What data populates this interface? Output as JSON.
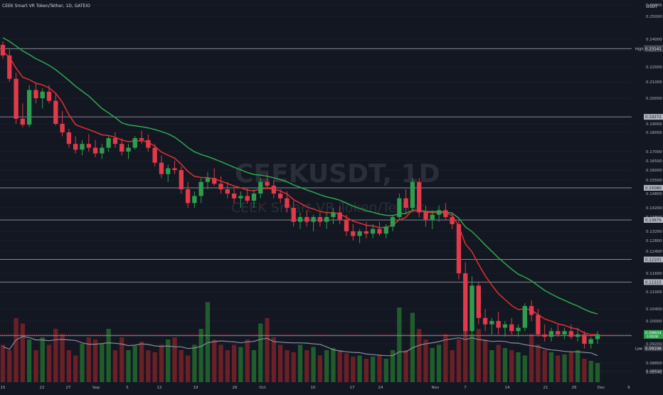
{
  "header": {
    "symbol_line": "CEEK Smart VR Token/Tether, 1D, GATEIO",
    "currency": "USDT"
  },
  "watermark": {
    "ticker": "CEEKUSDT, 1D",
    "name": "CEEK Smart VR Token/Tether"
  },
  "colors": {
    "background": "#131722",
    "up": "#26a69a",
    "down": "#ef5350",
    "candle_up": "#2e9e4e",
    "candle_down": "#e23a4a",
    "ema_fast": "#e0312f",
    "ema_slow": "#2fa84f",
    "volume_ma": "#8a8e99",
    "level_line": "#9598a1",
    "grid": "#1e2230",
    "axis_text": "#b2b5be"
  },
  "chart_data": {
    "type": "candlestick",
    "y_axis": {
      "ticks": [
        "0.26000",
        "0.25000",
        "0.24000",
        "0.23000",
        "0.22000",
        "0.21000",
        "0.20000",
        "0.19000",
        "0.18000",
        "0.17000",
        "0.16500",
        "0.16000",
        "0.15500",
        "0.15000",
        "0.14800",
        "0.14200",
        "0.13800",
        "0.13200",
        "0.12800",
        "0.12400",
        "0.11600",
        "0.11000",
        "0.10400",
        "0.10000",
        "0.09600",
        "0.09200",
        "0.08800",
        "0.08600",
        "0.08540"
      ]
    },
    "x_axis": {
      "labels": [
        "15",
        "22",
        "27",
        "Sep",
        "5",
        "12",
        "19",
        "26",
        "Oct",
        "10",
        "17",
        "24",
        "Nov",
        "7",
        "14",
        "21",
        "26",
        "Dec",
        "6"
      ]
    },
    "high": {
      "label": "High",
      "value": "0.23141"
    },
    "low": {
      "label": "Low",
      "value": "0.09106"
    },
    "levels": [
      "0.23169",
      "0.19272",
      "0.15080",
      "0.13679",
      "0.12101",
      "0.11315",
      "0.09549"
    ],
    "last_price": {
      "value": "0.09604",
      "sub": "0.09200"
    },
    "candles": [
      [
        0.235,
        0.238,
        0.225,
        0.227
      ],
      [
        0.227,
        0.231,
        0.21,
        0.212
      ],
      [
        0.212,
        0.216,
        0.19,
        0.192
      ],
      [
        0.192,
        0.198,
        0.186,
        0.189
      ],
      [
        0.189,
        0.208,
        0.186,
        0.205
      ],
      [
        0.205,
        0.209,
        0.198,
        0.2
      ],
      [
        0.2,
        0.206,
        0.196,
        0.204
      ],
      [
        0.204,
        0.208,
        0.198,
        0.199
      ],
      [
        0.199,
        0.203,
        0.188,
        0.19
      ],
      [
        0.19,
        0.195,
        0.178,
        0.18
      ],
      [
        0.18,
        0.184,
        0.172,
        0.174
      ],
      [
        0.174,
        0.178,
        0.169,
        0.171
      ],
      [
        0.171,
        0.176,
        0.168,
        0.174
      ],
      [
        0.174,
        0.179,
        0.17,
        0.172
      ],
      [
        0.172,
        0.176,
        0.167,
        0.169
      ],
      [
        0.169,
        0.174,
        0.166,
        0.172
      ],
      [
        0.172,
        0.178,
        0.17,
        0.177
      ],
      [
        0.177,
        0.18,
        0.172,
        0.174
      ],
      [
        0.174,
        0.177,
        0.168,
        0.17
      ],
      [
        0.17,
        0.174,
        0.166,
        0.172
      ],
      [
        0.172,
        0.178,
        0.171,
        0.177
      ],
      [
        0.177,
        0.182,
        0.174,
        0.176
      ],
      [
        0.176,
        0.179,
        0.17,
        0.172
      ],
      [
        0.172,
        0.174,
        0.162,
        0.164
      ],
      [
        0.164,
        0.168,
        0.156,
        0.158
      ],
      [
        0.158,
        0.163,
        0.154,
        0.161
      ],
      [
        0.161,
        0.165,
        0.158,
        0.16
      ],
      [
        0.16,
        0.162,
        0.148,
        0.15
      ],
      [
        0.15,
        0.154,
        0.142,
        0.144
      ],
      [
        0.144,
        0.149,
        0.142,
        0.147
      ],
      [
        0.147,
        0.156,
        0.144,
        0.154
      ],
      [
        0.154,
        0.159,
        0.15,
        0.156
      ],
      [
        0.156,
        0.161,
        0.152,
        0.153
      ],
      [
        0.153,
        0.157,
        0.148,
        0.15
      ],
      [
        0.15,
        0.154,
        0.146,
        0.148
      ],
      [
        0.148,
        0.151,
        0.144,
        0.146
      ],
      [
        0.146,
        0.149,
        0.142,
        0.147
      ],
      [
        0.147,
        0.151,
        0.144,
        0.145
      ],
      [
        0.145,
        0.15,
        0.142,
        0.148
      ],
      [
        0.148,
        0.156,
        0.146,
        0.154
      ],
      [
        0.154,
        0.158,
        0.15,
        0.152
      ],
      [
        0.152,
        0.155,
        0.146,
        0.148
      ],
      [
        0.148,
        0.15,
        0.144,
        0.146
      ],
      [
        0.146,
        0.149,
        0.14,
        0.142
      ],
      [
        0.142,
        0.145,
        0.134,
        0.136
      ],
      [
        0.136,
        0.14,
        0.133,
        0.138
      ],
      [
        0.138,
        0.141,
        0.134,
        0.136
      ],
      [
        0.136,
        0.139,
        0.132,
        0.138
      ],
      [
        0.138,
        0.14,
        0.134,
        0.136
      ],
      [
        0.136,
        0.14,
        0.133,
        0.138
      ],
      [
        0.138,
        0.142,
        0.135,
        0.14
      ],
      [
        0.14,
        0.143,
        0.135,
        0.137
      ],
      [
        0.137,
        0.139,
        0.13,
        0.132
      ],
      [
        0.132,
        0.135,
        0.128,
        0.13
      ],
      [
        0.13,
        0.133,
        0.127,
        0.132
      ],
      [
        0.132,
        0.136,
        0.129,
        0.131
      ],
      [
        0.131,
        0.135,
        0.129,
        0.133
      ],
      [
        0.133,
        0.136,
        0.13,
        0.131
      ],
      [
        0.131,
        0.135,
        0.129,
        0.134
      ],
      [
        0.134,
        0.139,
        0.132,
        0.138
      ],
      [
        0.138,
        0.148,
        0.137,
        0.146
      ],
      [
        0.146,
        0.15,
        0.139,
        0.142
      ],
      [
        0.142,
        0.156,
        0.14,
        0.154
      ],
      [
        0.154,
        0.156,
        0.138,
        0.14
      ],
      [
        0.14,
        0.143,
        0.134,
        0.137
      ],
      [
        0.137,
        0.141,
        0.133,
        0.139
      ],
      [
        0.139,
        0.143,
        0.136,
        0.141
      ],
      [
        0.141,
        0.144,
        0.137,
        0.138
      ],
      [
        0.138,
        0.14,
        0.133,
        0.135
      ],
      [
        0.135,
        0.137,
        0.114,
        0.116
      ],
      [
        0.116,
        0.12,
        0.095,
        0.097
      ],
      [
        0.097,
        0.115,
        0.096,
        0.112
      ],
      [
        0.112,
        0.113,
        0.099,
        0.101
      ],
      [
        0.101,
        0.104,
        0.097,
        0.099
      ],
      [
        0.099,
        0.101,
        0.096,
        0.1
      ],
      [
        0.1,
        0.103,
        0.096,
        0.098
      ],
      [
        0.098,
        0.1,
        0.095,
        0.099
      ],
      [
        0.099,
        0.101,
        0.096,
        0.097
      ],
      [
        0.097,
        0.099,
        0.095,
        0.098
      ],
      [
        0.098,
        0.106,
        0.097,
        0.105
      ],
      [
        0.105,
        0.107,
        0.1,
        0.102
      ],
      [
        0.102,
        0.104,
        0.095,
        0.096
      ],
      [
        0.096,
        0.099,
        0.093,
        0.095
      ],
      [
        0.095,
        0.098,
        0.093,
        0.097
      ],
      [
        0.097,
        0.099,
        0.095,
        0.096
      ],
      [
        0.096,
        0.098,
        0.094,
        0.097
      ],
      [
        0.097,
        0.099,
        0.094,
        0.095
      ],
      [
        0.095,
        0.098,
        0.093,
        0.096
      ],
      [
        0.096,
        0.097,
        0.091,
        0.092
      ],
      [
        0.092,
        0.095,
        0.091,
        0.094
      ],
      [
        0.094,
        0.097,
        0.092,
        0.096
      ]
    ],
    "volumes": [
      0.35,
      0.3,
      0.6,
      0.55,
      0.4,
      0.3,
      0.42,
      0.35,
      0.5,
      0.45,
      0.3,
      0.25,
      0.36,
      0.42,
      0.4,
      0.36,
      0.5,
      0.3,
      0.42,
      0.3,
      0.34,
      0.38,
      0.3,
      0.28,
      0.35,
      0.4,
      0.42,
      0.3,
      0.25,
      0.35,
      0.5,
      0.75,
      0.4,
      0.35,
      0.3,
      0.35,
      0.33,
      0.4,
      0.3,
      0.55,
      0.6,
      0.42,
      0.35,
      0.3,
      0.28,
      0.35,
      0.3,
      0.33,
      0.25,
      0.3,
      0.32,
      0.3,
      0.27,
      0.24,
      0.25,
      0.22,
      0.24,
      0.26,
      0.22,
      0.3,
      0.7,
      0.3,
      0.65,
      0.5,
      0.4,
      0.32,
      0.35,
      0.45,
      0.3,
      0.4,
      0.55,
      0.45,
      0.5,
      0.4,
      0.3,
      0.35,
      0.32,
      0.3,
      0.28,
      0.25,
      0.45,
      0.35,
      0.3,
      0.28,
      0.25,
      0.26,
      0.28,
      0.3,
      0.22,
      0.2,
      0.18
    ],
    "ema_fast_start": 0.23,
    "ema_slow_start": 0.242
  }
}
